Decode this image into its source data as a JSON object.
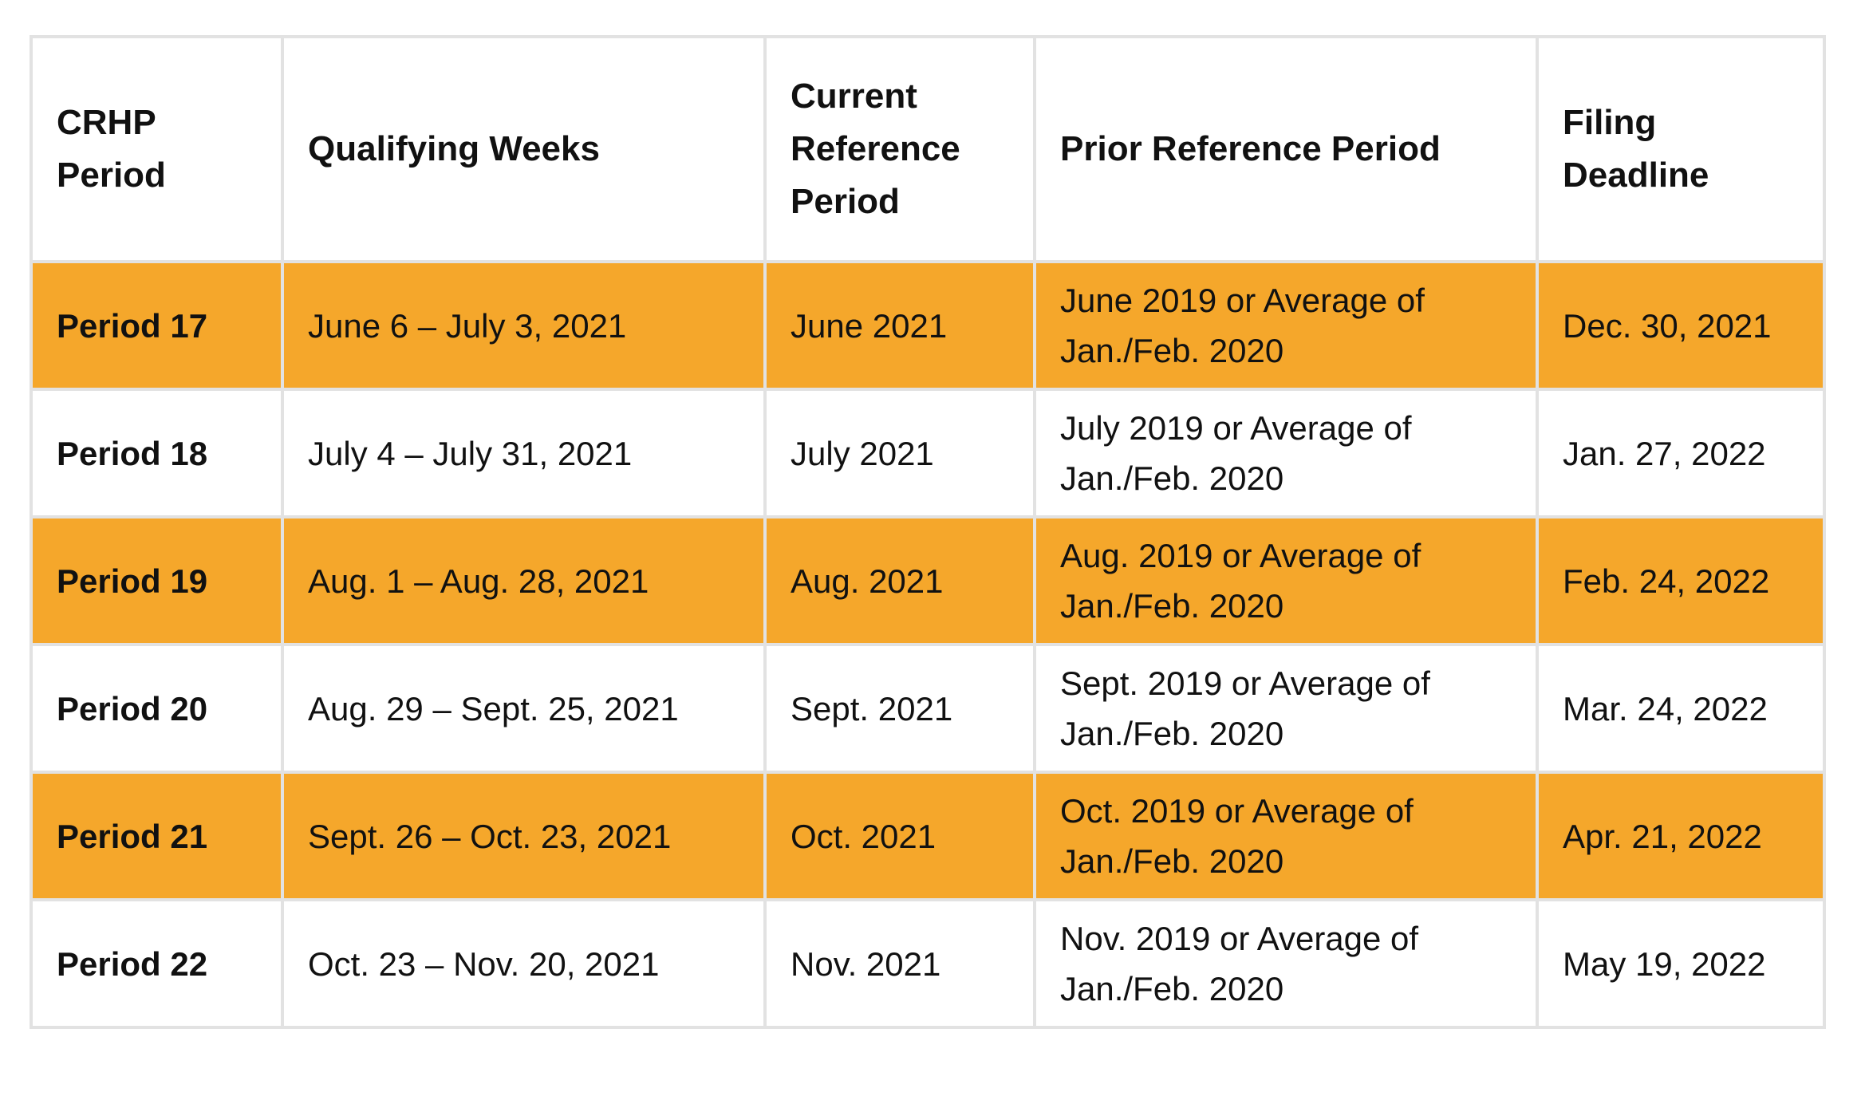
{
  "page": {
    "background_color": "#ffffff"
  },
  "table": {
    "name": "CRHP periods schedule",
    "accent_color": "#f5a72b",
    "border_color": "#e2e2e2",
    "columns": [
      "CRHP Period",
      "Qualifying Weeks",
      "Current Reference Period",
      "Prior Reference Period",
      "Filing Deadline"
    ],
    "rows": [
      {
        "period": "Period 17",
        "qualifying_weeks": "June 6 – July 3, 2021",
        "current_reference": "June 2021",
        "prior_reference": "June 2019 or Average of Jan./Feb. 2020",
        "filing_deadline": "Dec. 30, 2021",
        "highlighted": true
      },
      {
        "period": "Period 18",
        "qualifying_weeks": "July 4 – July 31, 2021",
        "current_reference": "July 2021",
        "prior_reference": "July 2019 or Average of Jan./Feb. 2020",
        "filing_deadline": "Jan. 27, 2022",
        "highlighted": false
      },
      {
        "period": "Period 19",
        "qualifying_weeks": "Aug. 1 – Aug. 28, 2021",
        "current_reference": "Aug. 2021",
        "prior_reference": "Aug. 2019 or Average of Jan./Feb. 2020",
        "filing_deadline": "Feb. 24, 2022",
        "highlighted": true
      },
      {
        "period": "Period 20",
        "qualifying_weeks": "Aug. 29 – Sept. 25, 2021",
        "current_reference": "Sept. 2021",
        "prior_reference": "Sept. 2019 or Average of Jan./Feb. 2020",
        "filing_deadline": "Mar. 24, 2022",
        "highlighted": false
      },
      {
        "period": "Period 21",
        "qualifying_weeks": "Sept. 26 – Oct. 23, 2021",
        "current_reference": "Oct. 2021",
        "prior_reference": "Oct. 2019 or Average of Jan./Feb. 2020",
        "filing_deadline": "Apr. 21, 2022",
        "highlighted": true
      },
      {
        "period": "Period 22",
        "qualifying_weeks": "Oct. 23 – Nov. 20, 2021",
        "current_reference": "Nov. 2021",
        "prior_reference": "Nov. 2019 or Average of Jan./Feb. 2020",
        "filing_deadline": "May 19, 2022",
        "highlighted": false
      }
    ]
  }
}
